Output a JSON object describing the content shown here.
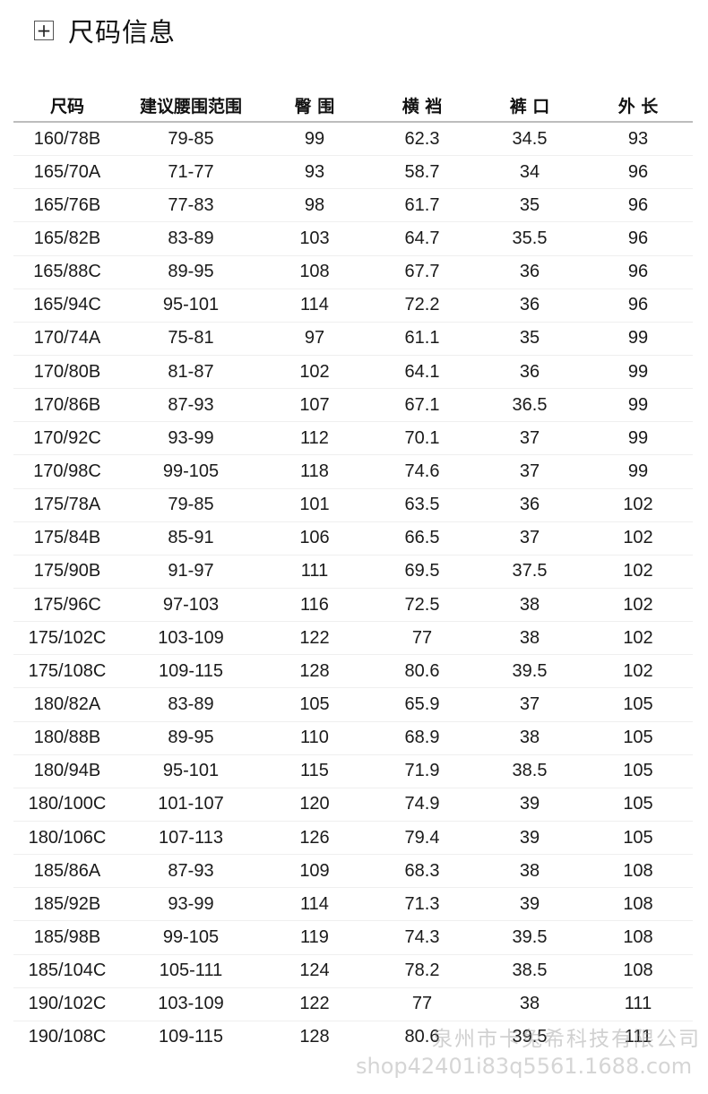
{
  "title": {
    "icon": "plus-box-icon",
    "plus": "+",
    "text": "尺码信息"
  },
  "table": {
    "headers": [
      "尺码",
      "建议腰围范围",
      "臀 围",
      "横 裆",
      "裤 口",
      "外 长"
    ],
    "rows": [
      [
        "160/78B",
        "79-85",
        "99",
        "62.3",
        "34.5",
        "93"
      ],
      [
        "165/70A",
        "71-77",
        "93",
        "58.7",
        "34",
        "96"
      ],
      [
        "165/76B",
        "77-83",
        "98",
        "61.7",
        "35",
        "96"
      ],
      [
        "165/82B",
        "83-89",
        "103",
        "64.7",
        "35.5",
        "96"
      ],
      [
        "165/88C",
        "89-95",
        "108",
        "67.7",
        "36",
        "96"
      ],
      [
        "165/94C",
        "95-101",
        "114",
        "72.2",
        "36",
        "96"
      ],
      [
        "170/74A",
        "75-81",
        "97",
        "61.1",
        "35",
        "99"
      ],
      [
        "170/80B",
        "81-87",
        "102",
        "64.1",
        "36",
        "99"
      ],
      [
        "170/86B",
        "87-93",
        "107",
        "67.1",
        "36.5",
        "99"
      ],
      [
        "170/92C",
        "93-99",
        "112",
        "70.1",
        "37",
        "99"
      ],
      [
        "170/98C",
        "99-105",
        "118",
        "74.6",
        "37",
        "99"
      ],
      [
        "175/78A",
        "79-85",
        "101",
        "63.5",
        "36",
        "102"
      ],
      [
        "175/84B",
        "85-91",
        "106",
        "66.5",
        "37",
        "102"
      ],
      [
        "175/90B",
        "91-97",
        "111",
        "69.5",
        "37.5",
        "102"
      ],
      [
        "175/96C",
        "97-103",
        "116",
        "72.5",
        "38",
        "102"
      ],
      [
        "175/102C",
        "103-109",
        "122",
        "77",
        "38",
        "102"
      ],
      [
        "175/108C",
        "109-115",
        "128",
        "80.6",
        "39.5",
        "102"
      ],
      [
        "180/82A",
        "83-89",
        "105",
        "65.9",
        "37",
        "105"
      ],
      [
        "180/88B",
        "89-95",
        "110",
        "68.9",
        "38",
        "105"
      ],
      [
        "180/94B",
        "95-101",
        "115",
        "71.9",
        "38.5",
        "105"
      ],
      [
        "180/100C",
        "101-107",
        "120",
        "74.9",
        "39",
        "105"
      ],
      [
        "180/106C",
        "107-113",
        "126",
        "79.4",
        "39",
        "105"
      ],
      [
        "185/86A",
        "87-93",
        "109",
        "68.3",
        "38",
        "108"
      ],
      [
        "185/92B",
        "93-99",
        "114",
        "71.3",
        "39",
        "108"
      ],
      [
        "185/98B",
        "99-105",
        "119",
        "74.3",
        "39.5",
        "108"
      ],
      [
        "185/104C",
        "105-111",
        "124",
        "78.2",
        "38.5",
        "108"
      ],
      [
        "190/102C",
        "103-109",
        "122",
        "77",
        "38",
        "111"
      ],
      [
        "190/108C",
        "109-115",
        "128",
        "80.6",
        "39.5",
        "111"
      ]
    ]
  },
  "watermark": {
    "company": "泉州市卡兔希科技有限公司",
    "url": "shop42401i83q5561.1688.com"
  }
}
